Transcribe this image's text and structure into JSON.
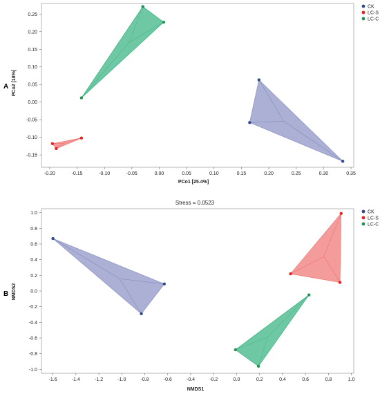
{
  "chart_data": [
    {
      "type": "scatter",
      "panel_label": "A",
      "title": "",
      "xlabel": "PCo1 [25.4%]",
      "ylabel": "PCo2 [18%]",
      "xlim": [
        -0.215,
        0.355
      ],
      "ylim": [
        -0.185,
        0.28
      ],
      "xticks": [
        -0.2,
        -0.15,
        -0.1,
        -0.05,
        0.0,
        0.05,
        0.1,
        0.15,
        0.2,
        0.25,
        0.3,
        0.35
      ],
      "xtick_labels": [
        "-0.20",
        "-0.15",
        "-0.10",
        "-0.05",
        "0.00",
        "0.05",
        "0.10",
        "0.15",
        "0.20",
        "0.25",
        "0.30",
        "0.35"
      ],
      "yticks": [
        -0.15,
        -0.1,
        -0.05,
        0.0,
        0.05,
        0.1,
        0.15,
        0.2,
        0.25
      ],
      "ytick_labels": [
        "-0.15",
        "-0.10",
        "-0.05",
        "0.00",
        "0.05",
        "0.10",
        "0.15",
        "0.20",
        "0.25"
      ],
      "grid": false,
      "legend_position": "top-right",
      "series": [
        {
          "name": "CK",
          "color": "#2e4a8e",
          "fill": "#8f96c6",
          "points": [
            [
              0.182,
              0.063
            ],
            [
              0.165,
              -0.058
            ],
            [
              0.335,
              -0.168
            ]
          ]
        },
        {
          "name": "LC-S",
          "color": "#e8221f",
          "fill": "#f07b79",
          "points": [
            [
              -0.195,
              -0.118
            ],
            [
              -0.188,
              -0.132
            ],
            [
              -0.142,
              -0.102
            ]
          ]
        },
        {
          "name": "LC-C",
          "color": "#1e9453",
          "fill": "#3cb584",
          "points": [
            [
              -0.03,
              0.271
            ],
            [
              0.008,
              0.227
            ],
            [
              -0.142,
              0.012
            ]
          ]
        }
      ]
    },
    {
      "type": "scatter",
      "panel_label": "B",
      "title": "Stress = 0.0523",
      "xlabel": "NMDS1",
      "ylabel": "NMDS2",
      "xlim": [
        -1.7,
        1.02
      ],
      "ylim": [
        -1.05,
        1.05
      ],
      "xticks": [
        -1.6,
        -1.4,
        -1.2,
        -1.0,
        -0.8,
        -0.6,
        -0.4,
        -0.2,
        0.0,
        0.2,
        0.4,
        0.6,
        0.8,
        1.0
      ],
      "xtick_labels": [
        "-1.6",
        "-1.4",
        "-1.2",
        "-1.0",
        "-0.8",
        "-0.6",
        "-0.4",
        "-0.2",
        "0.0",
        "0.2",
        "0.4",
        "0.6",
        "0.8",
        "1.0"
      ],
      "yticks": [
        -1.0,
        -0.8,
        -0.6,
        -0.4,
        -0.2,
        0.0,
        0.2,
        0.4,
        0.6,
        0.8,
        1.0
      ],
      "ytick_labels": [
        "-1.0",
        "-0.8",
        "-0.6",
        "-0.4",
        "-0.2",
        "0.0",
        "0.2",
        "0.4",
        "0.6",
        "0.8",
        "1.0"
      ],
      "grid": false,
      "legend_position": "top-right",
      "series": [
        {
          "name": "CK",
          "color": "#2e4a8e",
          "fill": "#8f96c6",
          "points": [
            [
              -1.6,
              0.67
            ],
            [
              -0.63,
              0.09
            ],
            [
              -0.83,
              -0.29
            ]
          ]
        },
        {
          "name": "LC-S",
          "color": "#e8221f",
          "fill": "#f07b79",
          "points": [
            [
              0.91,
              0.99
            ],
            [
              0.47,
              0.22
            ],
            [
              0.9,
              0.11
            ]
          ]
        },
        {
          "name": "LC-C",
          "color": "#1e9453",
          "fill": "#3cb584",
          "points": [
            [
              0.63,
              -0.05
            ],
            [
              -0.01,
              -0.75
            ],
            [
              0.19,
              -0.96
            ]
          ]
        }
      ]
    }
  ]
}
